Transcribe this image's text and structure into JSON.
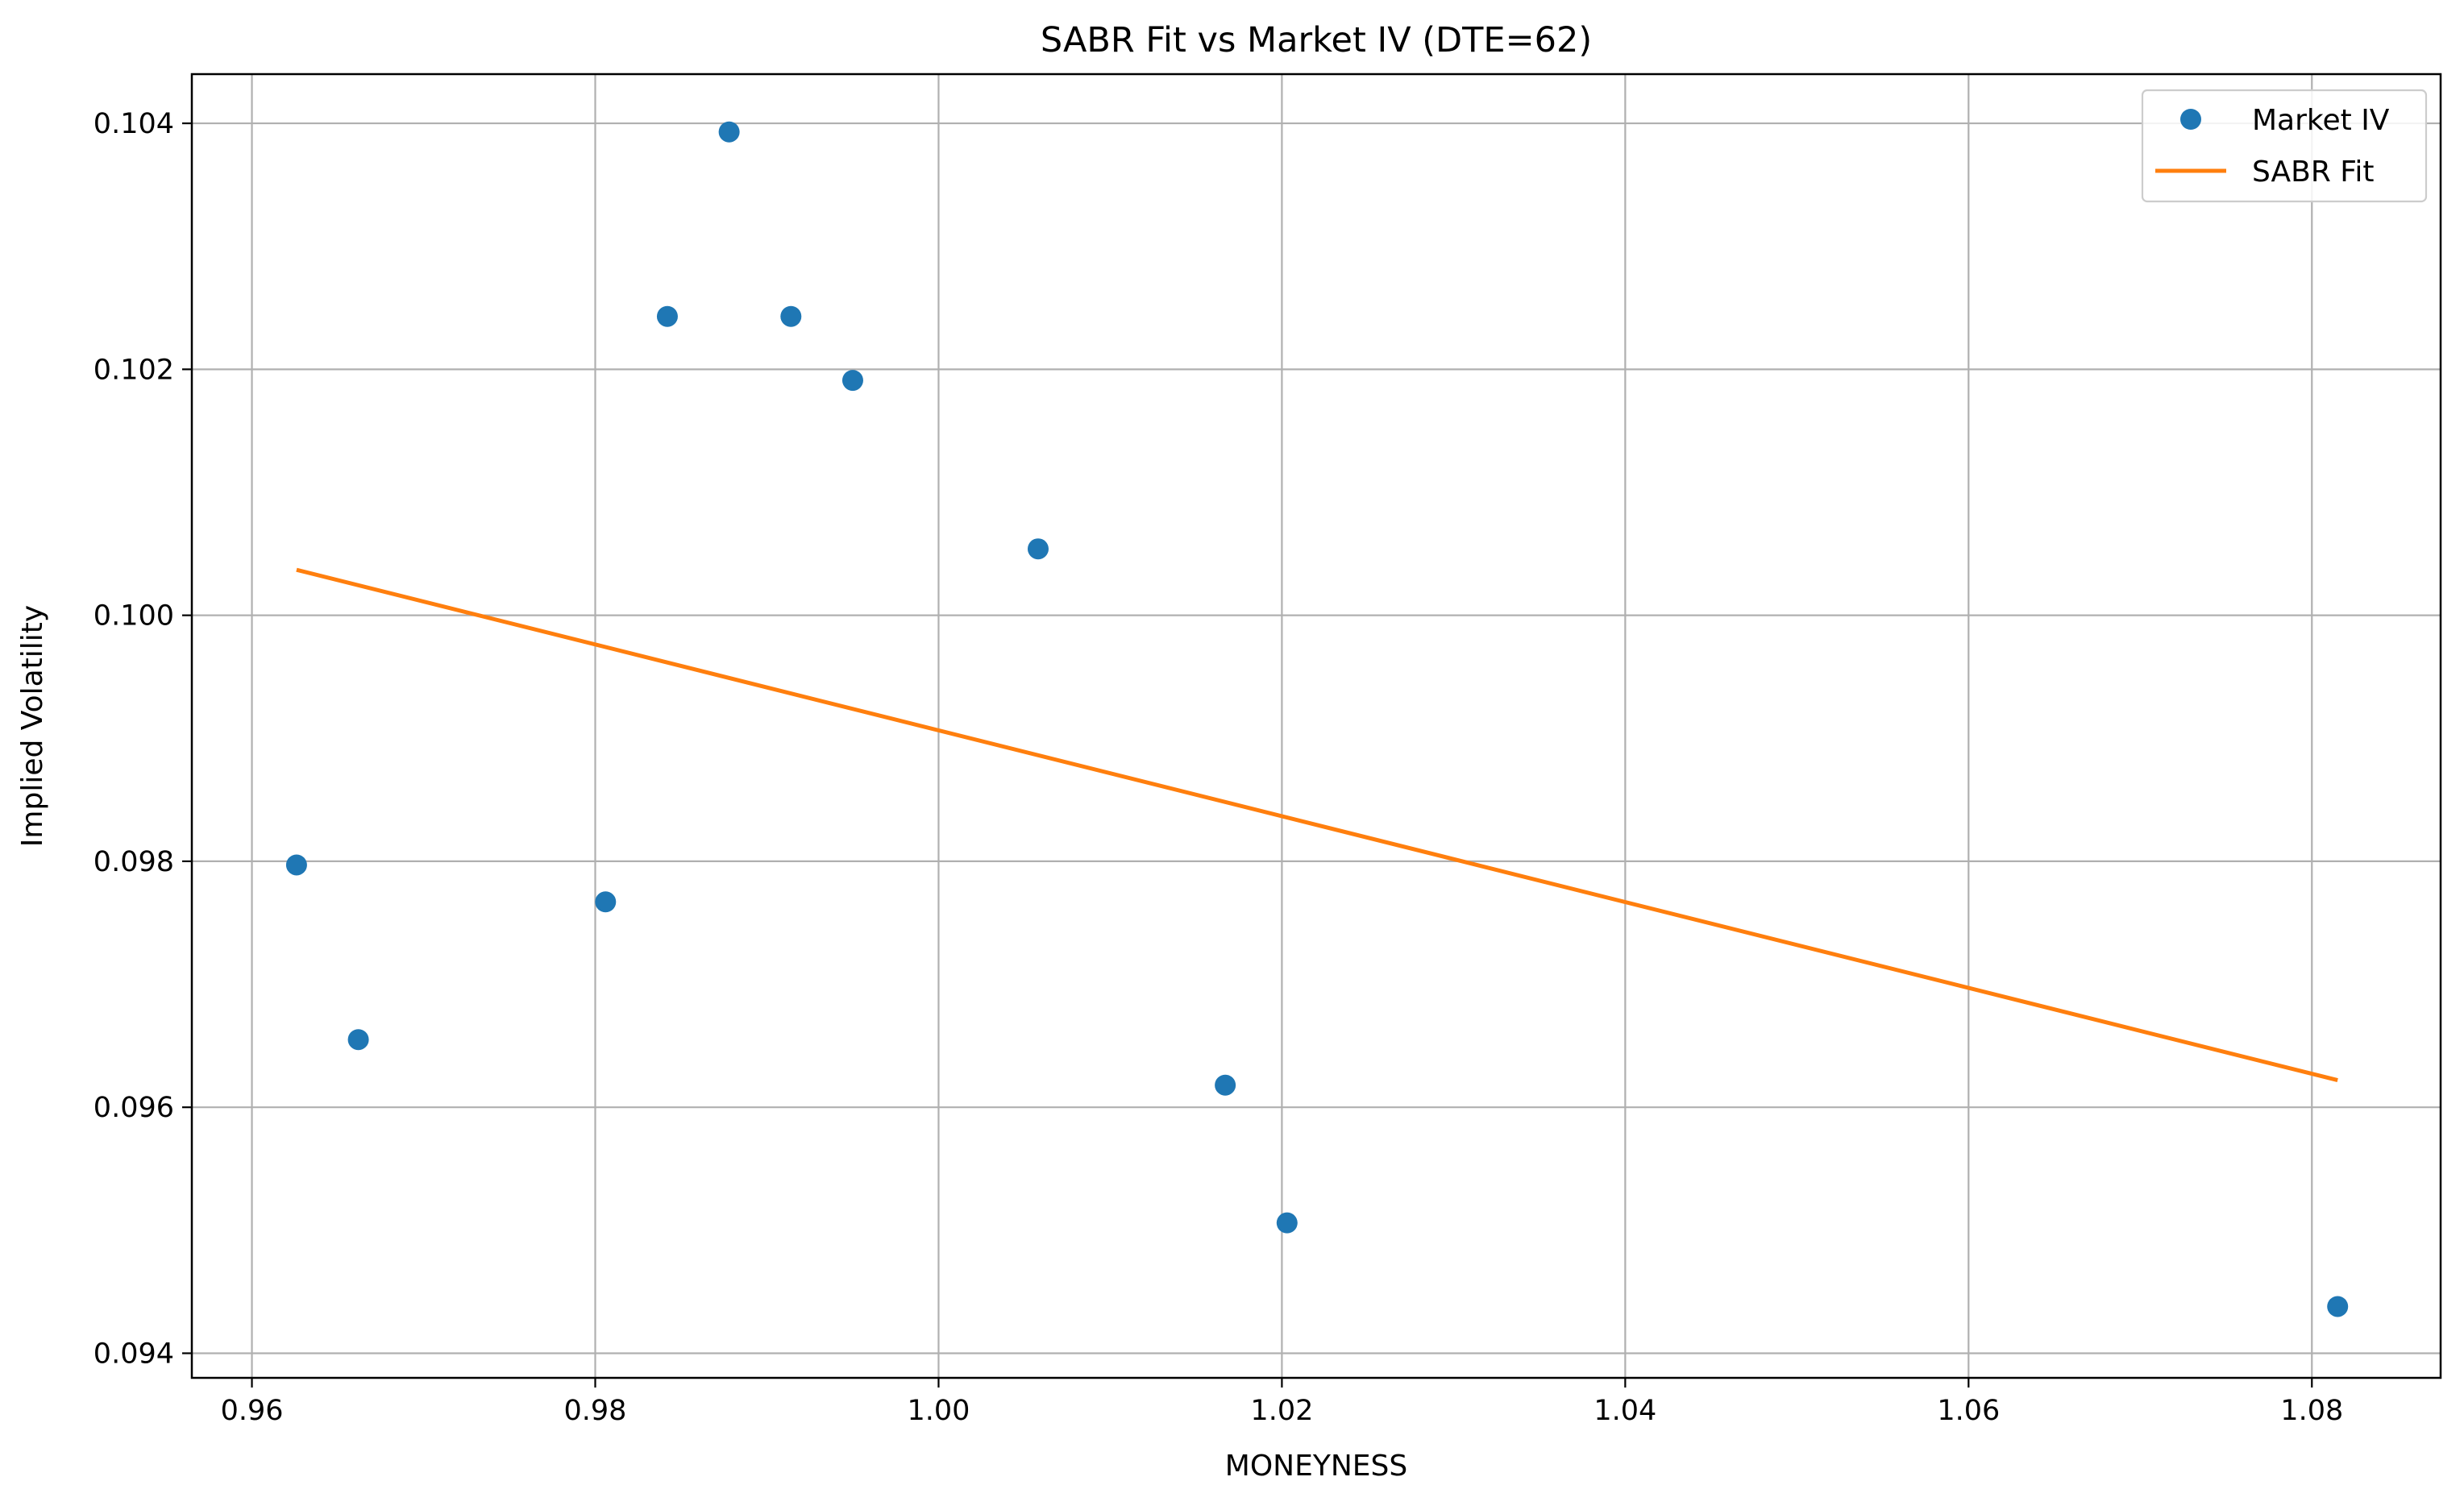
{
  "chart_data": {
    "type": "scatter",
    "title": "SABR Fit vs Market IV (DTE=62)",
    "xlabel": "MONEYNESS",
    "ylabel": "Implied Volatility",
    "xlim": [
      0.9565,
      1.0875
    ],
    "ylim": [
      0.0938,
      0.1044
    ],
    "xticks": [
      0.96,
      0.98,
      1.0,
      1.02,
      1.04,
      1.06,
      1.08
    ],
    "xtick_labels": [
      "0.96",
      "0.98",
      "1.00",
      "1.02",
      "1.04",
      "1.06",
      "1.08"
    ],
    "yticks": [
      0.094,
      0.096,
      0.098,
      0.1,
      0.102,
      0.104
    ],
    "ytick_labels": [
      "0.094",
      "0.096",
      "0.098",
      "0.100",
      "0.102",
      "0.104"
    ],
    "grid": true,
    "legend_position": "top-right",
    "series": [
      {
        "name": "Market IV",
        "kind": "scatter",
        "color": "#1f77b4",
        "points": [
          {
            "x": 0.9626,
            "y": 0.09797
          },
          {
            "x": 0.9662,
            "y": 0.09655
          },
          {
            "x": 0.9806,
            "y": 0.09767
          },
          {
            "x": 0.9842,
            "y": 0.10243
          },
          {
            "x": 0.9878,
            "y": 0.10393
          },
          {
            "x": 0.9914,
            "y": 0.10243
          },
          {
            "x": 0.995,
            "y": 0.10191
          },
          {
            "x": 1.0058,
            "y": 0.10054
          },
          {
            "x": 1.0167,
            "y": 0.09618
          },
          {
            "x": 1.0203,
            "y": 0.09506
          },
          {
            "x": 1.0815,
            "y": 0.09438
          }
        ]
      },
      {
        "name": "SABR Fit",
        "kind": "line",
        "color": "#ff7f0e",
        "points": [
          {
            "x": 0.9626,
            "y": 0.10037
          },
          {
            "x": 1.0815,
            "y": 0.09622
          }
        ]
      }
    ]
  }
}
